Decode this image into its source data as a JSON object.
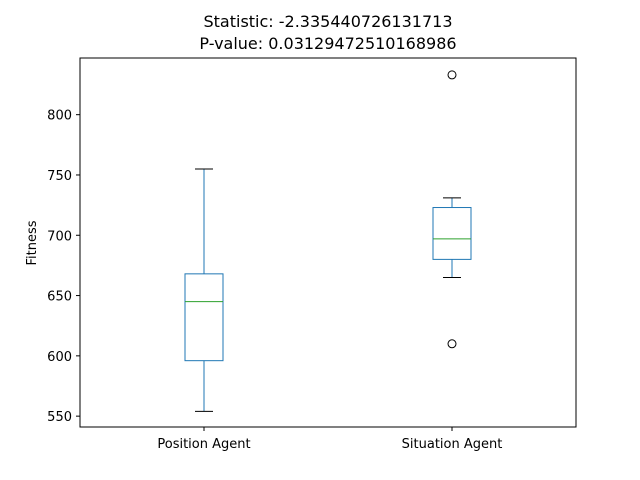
{
  "chart_data": {
    "type": "box",
    "title_lines": [
      "Statistic: -2.335440726131713",
      "P-value: 0.03129472510168986"
    ],
    "xlabel": "",
    "ylabel": "Fitness",
    "ylim": [
      541,
      847
    ],
    "yticks": [
      550,
      600,
      650,
      700,
      750,
      800
    ],
    "categories": [
      "Position Agent",
      "Situation Agent"
    ],
    "boxes": [
      {
        "whisker_low": 554,
        "q1": 596,
        "median": 645,
        "q3": 668,
        "whisker_high": 755,
        "outliers": []
      },
      {
        "whisker_low": 665,
        "q1": 680,
        "median": 697,
        "q3": 723,
        "whisker_high": 731,
        "outliers": [
          610,
          833
        ]
      }
    ],
    "grid": false,
    "colors": {
      "box": "#1f77b4",
      "median": "#2ca02c",
      "whisker": "#1f77b4",
      "cap": "#000000",
      "outlier": "#000000"
    }
  }
}
